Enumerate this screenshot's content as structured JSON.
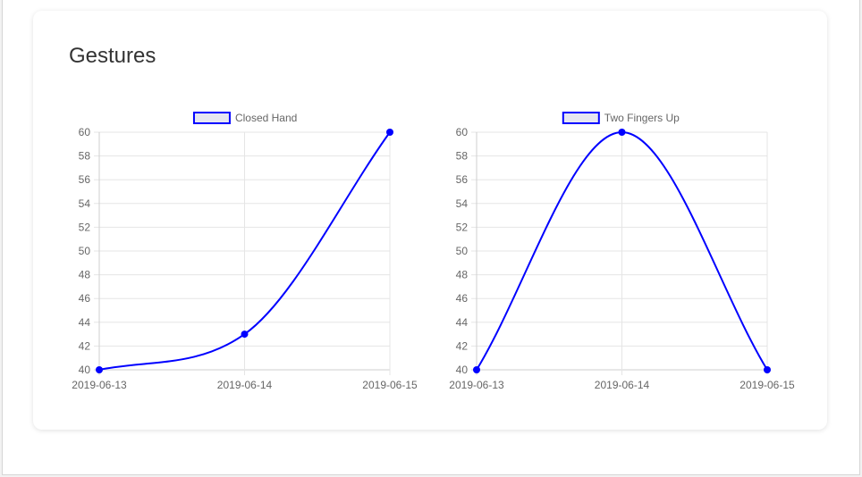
{
  "card": {
    "title": "Gestures"
  },
  "colors": {
    "series_line": "#0000ff",
    "legend_fill": "#e6e6f0",
    "grid": "#e5e5e5",
    "text": "#666666"
  },
  "chart_data": [
    {
      "type": "line",
      "title": "",
      "xlabel": "",
      "ylabel": "",
      "x": [
        "2019-06-13",
        "2019-06-14",
        "2019-06-15"
      ],
      "series": [
        {
          "name": "Closed Hand",
          "values": [
            40,
            43,
            60
          ]
        }
      ],
      "ylim": [
        40,
        60
      ],
      "yticks": [
        40,
        42,
        44,
        46,
        48,
        50,
        52,
        54,
        56,
        58,
        60
      ],
      "grid": true,
      "legend": "top-center"
    },
    {
      "type": "line",
      "title": "",
      "xlabel": "",
      "ylabel": "",
      "x": [
        "2019-06-13",
        "2019-06-14",
        "2019-06-15"
      ],
      "series": [
        {
          "name": "Two Fingers Up",
          "values": [
            40,
            60,
            40
          ]
        }
      ],
      "ylim": [
        40,
        60
      ],
      "yticks": [
        40,
        42,
        44,
        46,
        48,
        50,
        52,
        54,
        56,
        58,
        60
      ],
      "grid": true,
      "legend": "top-center"
    }
  ]
}
